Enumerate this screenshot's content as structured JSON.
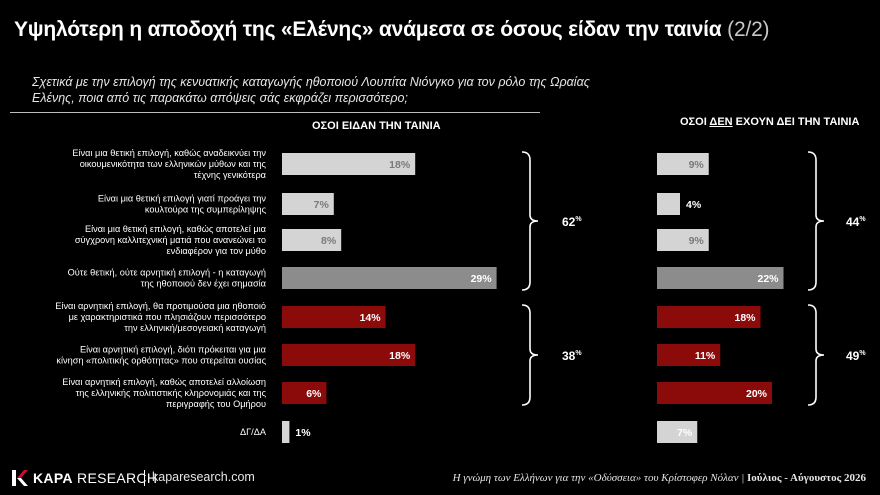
{
  "header": {
    "title": "Υψηλότερη η αποδοχή της «Ελένης» ανάμεσα σε όσους είδαν την ταινία",
    "page_indicator": "(2/2)"
  },
  "question": "Σχετικά με την επιλογή της κενυατικής καταγωγής ηθοποιού Λουπίτα Νιόνγκο για τον ρόλο της Ωραίας Ελένης, ποια από τις παρακάτω απόψεις σάς εκφράζει περισσότερο;",
  "columns": {
    "left": "ΟΣΟΙ ΕΙΔΑΝ ΤΗΝ ΤΑΙΝΙΑ",
    "right_pre": "ΟΣΟΙ ",
    "right_underlined": "ΔΕΝ",
    "right_post": " ΕΧΟΥΝ ΔΕΙ ΤΗΝ ΤΑΙΝΙΑ"
  },
  "chart_data": {
    "type": "bar",
    "orientation": "horizontal",
    "categories": [
      "Είναι μια θετική επιλογή, καθώς αναδεικνύει την οικουμενικότητα των ελληνικών μύθων και της τέχνης γενικότερα",
      "Είναι μια θετική επιλογή γιατί προάγει την κουλτούρα της συμπερίληψης",
      "Είναι μια θετική επιλογή, καθώς αποτελεί μια σύγχρονη καλλιτεχνική ματιά που ανανεώνει το ενδιαφέρον για τον μύθο",
      "Ούτε θετική, ούτε αρνητική επιλογή - η καταγωγή της ηθοποιού δεν έχει σημασία",
      "Είναι αρνητική επιλογή, θα προτιμούσα μια ηθοποιό με χαρακτηριστικά που πλησιάζουν περισσότερο την ελληνική/μεσογειακή καταγωγή",
      "Είναι αρνητική επιλογή, διότι πρόκειται για μια κίνηση «πολιτικής ορθότητας» που στερείται ουσίας",
      "Είναι αρνητική επιλογή, καθώς αποτελεί αλλοίωση της ελληνικής πολιτιστικής κληρονομιάς και της περιγραφής του Ομήρου",
      "ΔΓ/ΔΑ"
    ],
    "category_lines": [
      [
        "Είναι μια θετική επιλογή, καθώς αναδεικνύει την",
        "οικουμενικότητα των ελληνικών μύθων και της",
        "τέχνης γενικότερα"
      ],
      [
        "Είναι μια θετική επιλογή γιατί προάγει την",
        "κουλτούρα της συμπερίληψης"
      ],
      [
        "Είναι μια θετική επιλογή, καθώς αποτελεί μια",
        "σύγχρονη καλλιτεχνική ματιά που ανανεώνει το",
        "ενδιαφέρον για τον μύθο"
      ],
      [
        "Ούτε θετική, ούτε αρνητική επιλογή - η καταγωγή",
        "της ηθοποιού δεν έχει σημασία"
      ],
      [
        "Είναι αρνητική επιλογή, θα προτιμούσα μια ηθοποιό",
        "με χαρακτηριστικά που πλησιάζουν περισσότερο",
        "την ελληνική/μεσογειακή καταγωγή"
      ],
      [
        "Είναι αρνητική επιλογή, διότι πρόκειται για μια",
        "κίνηση «πολιτικής ορθότητας» που στερείται ουσίας"
      ],
      [
        "Είναι αρνητική επιλογή, καθώς αποτελεί αλλοίωση",
        "της ελληνικής πολιτιστικής κληρονομιάς και της",
        "περιγραφής του Ομήρου"
      ],
      [
        "ΔΓ/ΔΑ"
      ]
    ],
    "series": [
      {
        "name": "ΟΣΟΙ ΕΙΔΑΝ ΤΗΝ ΤΑΙΝΙΑ",
        "values": [
          18,
          7,
          8,
          29,
          14,
          18,
          6,
          1
        ]
      },
      {
        "name": "ΟΣΟΙ ΔΕΝ ΕΧΟΥΝ ΔΕΙ ΤΗΝ ΤΑΙΝΙΑ",
        "values": [
          9,
          4,
          9,
          22,
          18,
          11,
          20,
          7
        ]
      }
    ],
    "value_suffix": "%",
    "bar_colors": [
      "#d4d4d4",
      "#d4d4d4",
      "#d4d4d4",
      "#8c8c8c",
      "#8b0a0a",
      "#8b0a0a",
      "#8b0a0a",
      "#d4d4d4"
    ],
    "label_colors": [
      "#7a7a7a",
      "#7a7a7a",
      "#7a7a7a",
      "#ffffff",
      "#ffffff",
      "#ffffff",
      "#ffffff",
      "#ffffff"
    ],
    "groups": [
      {
        "series": 0,
        "from": 0,
        "to": 3,
        "total": 62
      },
      {
        "series": 0,
        "from": 4,
        "to": 6,
        "total": 38
      },
      {
        "series": 1,
        "from": 0,
        "to": 3,
        "total": 44
      },
      {
        "series": 1,
        "from": 4,
        "to": 6,
        "total": 49
      }
    ]
  },
  "footer": {
    "brand_bold": "KAPA",
    "brand_light": " RESEARCH",
    "website": "kaparesearch.com",
    "study": "Η γνώμη των Ελλήνων για την «Οδύσσεια» του Κρίστοφερ Νόλαν",
    "period": "Ιούλιος - Αύγουστος 2026"
  },
  "colors": {
    "background": "#000000",
    "positive_bar": "#d4d4d4",
    "neutral_bar": "#8c8c8c",
    "negative_bar": "#8b0a0a",
    "brand_red": "#c8102e"
  }
}
